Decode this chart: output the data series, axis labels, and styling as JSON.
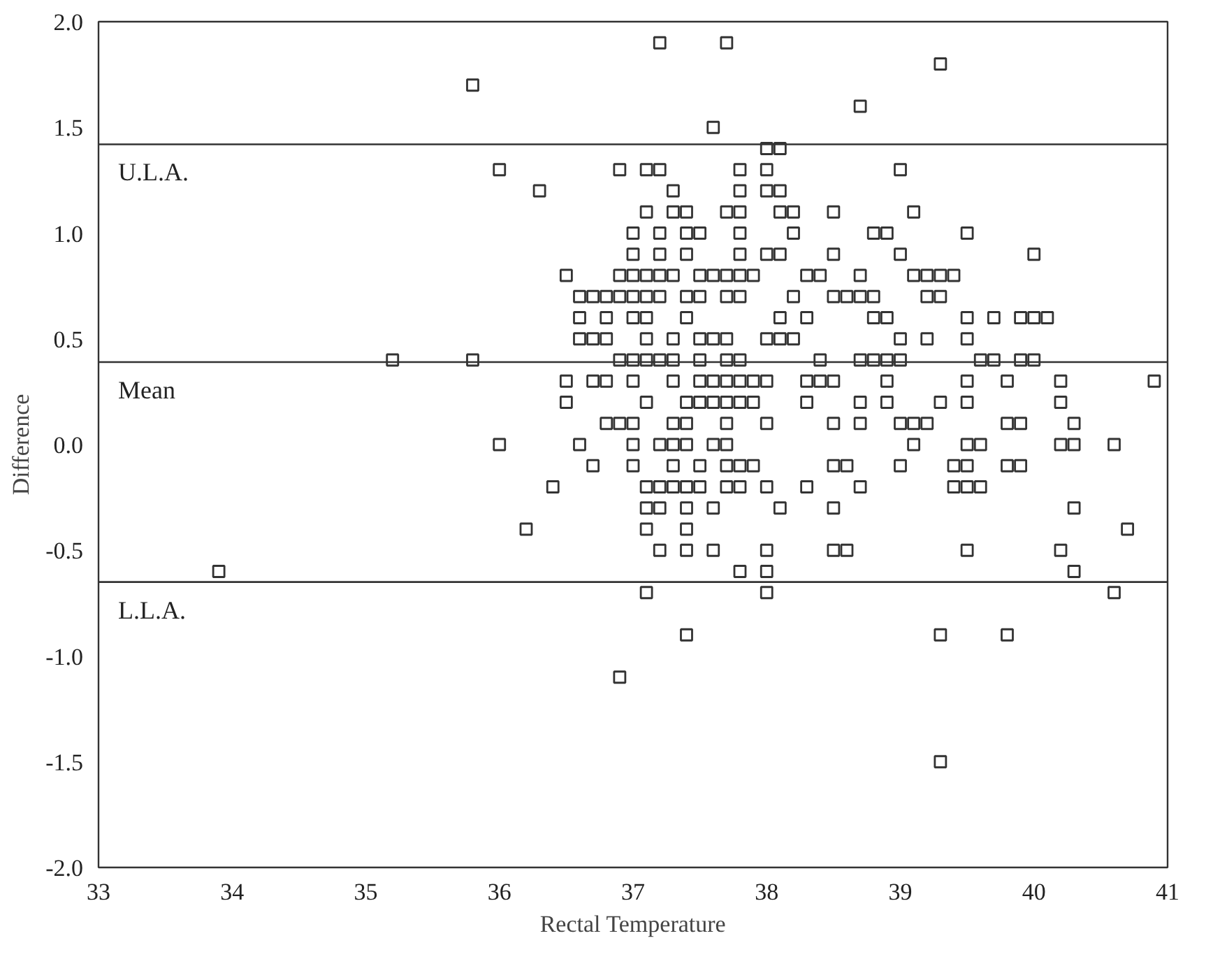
{
  "chart_data": {
    "type": "scatter",
    "xlabel": "Rectal Temperature",
    "ylabel": "Difference",
    "xlim": [
      33,
      41
    ],
    "ylim": [
      -2.0,
      2.0
    ],
    "xticks": [
      33,
      34,
      35,
      36,
      37,
      38,
      39,
      40,
      41
    ],
    "yticks": [
      {
        "value": -2.0,
        "label": "-2.0"
      },
      {
        "value": -1.5,
        "label": "-1.5"
      },
      {
        "value": -1.0,
        "label": "-1.0"
      },
      {
        "value": -0.5,
        "label": "-0.5"
      },
      {
        "value": 0.0,
        "label": "0.0"
      },
      {
        "value": 0.5,
        "label": "0.5"
      },
      {
        "value": 1.0,
        "label": "1.0"
      },
      {
        "value": 1.5,
        "label": "1.5"
      },
      {
        "value": 2.0,
        "label": "2.0"
      }
    ],
    "grid": false,
    "marker": "square",
    "ref_lines": [
      {
        "axis": "y",
        "value": 1.42,
        "label": "U.L.A.",
        "color": "#333333"
      },
      {
        "axis": "y",
        "value": 0.39,
        "label": "Mean",
        "color": "#333333"
      },
      {
        "axis": "y",
        "value": -0.65,
        "label": "L.L.A.",
        "color": "#333333"
      }
    ],
    "series": [
      {
        "color": "#333333",
        "x": [
          37.2,
          37.7,
          39.3,
          35.8,
          38.7,
          37.6,
          38.0,
          38.1,
          36.0,
          36.9,
          37.1,
          37.2,
          37.8,
          38.0,
          39.0,
          36.3,
          37.3,
          37.8,
          38.0,
          38.1,
          37.1,
          37.3,
          37.4,
          37.7,
          37.8,
          38.1,
          38.2,
          38.5,
          39.1,
          37.0,
          37.2,
          37.4,
          37.5,
          37.8,
          38.2,
          38.8,
          38.9,
          39.5,
          37.0,
          37.2,
          37.4,
          37.8,
          38.0,
          38.1,
          38.5,
          39.0,
          40.0,
          36.5,
          36.9,
          37.0,
          37.1,
          37.2,
          37.3,
          37.5,
          37.6,
          37.7,
          37.8,
          37.9,
          38.3,
          38.4,
          38.7,
          39.1,
          39.2,
          39.3,
          39.4,
          36.6,
          36.7,
          36.8,
          36.9,
          37.0,
          37.1,
          37.2,
          37.4,
          37.5,
          37.7,
          37.8,
          38.2,
          38.5,
          38.6,
          38.7,
          38.8,
          39.2,
          39.3,
          36.6,
          36.8,
          37.0,
          37.1,
          37.4,
          38.1,
          38.3,
          38.8,
          38.9,
          39.5,
          39.7,
          39.9,
          40.0,
          40.1,
          36.6,
          36.7,
          36.8,
          37.1,
          37.3,
          37.5,
          37.6,
          37.7,
          38.0,
          38.1,
          38.2,
          39.0,
          39.2,
          39.5,
          35.2,
          35.8,
          36.9,
          37.0,
          37.1,
          37.2,
          37.3,
          37.5,
          37.7,
          37.8,
          38.4,
          38.7,
          38.8,
          38.9,
          39.0,
          39.6,
          39.7,
          39.9,
          40.0,
          36.5,
          36.7,
          36.8,
          37.0,
          37.3,
          37.5,
          37.6,
          37.7,
          37.8,
          37.9,
          38.0,
          38.3,
          38.4,
          38.5,
          38.9,
          39.5,
          39.8,
          40.2,
          40.9,
          36.5,
          37.1,
          37.4,
          37.5,
          37.6,
          37.7,
          37.8,
          37.9,
          38.3,
          38.7,
          38.9,
          39.3,
          39.5,
          40.2,
          36.8,
          36.9,
          37.0,
          37.3,
          37.4,
          37.7,
          38.0,
          38.5,
          38.7,
          39.0,
          39.1,
          39.2,
          39.8,
          39.9,
          40.3,
          36.0,
          36.6,
          37.0,
          37.2,
          37.3,
          37.4,
          37.6,
          37.7,
          39.1,
          39.5,
          39.6,
          40.2,
          40.3,
          40.6,
          36.7,
          37.0,
          37.3,
          37.5,
          37.7,
          37.8,
          37.9,
          38.5,
          38.6,
          39.0,
          39.4,
          39.5,
          39.8,
          39.9,
          36.4,
          37.1,
          37.2,
          37.3,
          37.4,
          37.5,
          37.7,
          37.8,
          38.0,
          38.3,
          38.7,
          39.4,
          39.5,
          39.6,
          37.1,
          37.2,
          37.4,
          37.6,
          38.1,
          38.5,
          40.3,
          36.2,
          37.1,
          37.4,
          40.7,
          37.2,
          37.4,
          37.6,
          38.0,
          38.5,
          38.6,
          39.5,
          40.2,
          33.9,
          37.8,
          38.0,
          40.3,
          37.1,
          38.0,
          40.6,
          37.4,
          39.3,
          39.8,
          36.9,
          39.3
        ],
        "values": [
          1.9,
          1.9,
          1.8,
          1.7,
          1.6,
          1.5,
          1.4,
          1.4,
          1.3,
          1.3,
          1.3,
          1.3,
          1.3,
          1.3,
          1.3,
          1.2,
          1.2,
          1.2,
          1.2,
          1.2,
          1.1,
          1.1,
          1.1,
          1.1,
          1.1,
          1.1,
          1.1,
          1.1,
          1.1,
          1.0,
          1.0,
          1.0,
          1.0,
          1.0,
          1.0,
          1.0,
          1.0,
          1.0,
          0.9,
          0.9,
          0.9,
          0.9,
          0.9,
          0.9,
          0.9,
          0.9,
          0.9,
          0.8,
          0.8,
          0.8,
          0.8,
          0.8,
          0.8,
          0.8,
          0.8,
          0.8,
          0.8,
          0.8,
          0.8,
          0.8,
          0.8,
          0.8,
          0.8,
          0.8,
          0.8,
          0.7,
          0.7,
          0.7,
          0.7,
          0.7,
          0.7,
          0.7,
          0.7,
          0.7,
          0.7,
          0.7,
          0.7,
          0.7,
          0.7,
          0.7,
          0.7,
          0.7,
          0.7,
          0.6,
          0.6,
          0.6,
          0.6,
          0.6,
          0.6,
          0.6,
          0.6,
          0.6,
          0.6,
          0.6,
          0.6,
          0.6,
          0.6,
          0.5,
          0.5,
          0.5,
          0.5,
          0.5,
          0.5,
          0.5,
          0.5,
          0.5,
          0.5,
          0.5,
          0.5,
          0.5,
          0.5,
          0.4,
          0.4,
          0.4,
          0.4,
          0.4,
          0.4,
          0.4,
          0.4,
          0.4,
          0.4,
          0.4,
          0.4,
          0.4,
          0.4,
          0.4,
          0.4,
          0.4,
          0.4,
          0.4,
          0.3,
          0.3,
          0.3,
          0.3,
          0.3,
          0.3,
          0.3,
          0.3,
          0.3,
          0.3,
          0.3,
          0.3,
          0.3,
          0.3,
          0.3,
          0.3,
          0.3,
          0.3,
          0.3,
          0.2,
          0.2,
          0.2,
          0.2,
          0.2,
          0.2,
          0.2,
          0.2,
          0.2,
          0.2,
          0.2,
          0.2,
          0.2,
          0.2,
          0.1,
          0.1,
          0.1,
          0.1,
          0.1,
          0.1,
          0.1,
          0.1,
          0.1,
          0.1,
          0.1,
          0.1,
          0.1,
          0.1,
          0.1,
          0.0,
          0.0,
          0.0,
          0.0,
          0.0,
          0.0,
          0.0,
          0.0,
          0.0,
          0.0,
          0.0,
          0.0,
          0.0,
          0.0,
          -0.1,
          -0.1,
          -0.1,
          -0.1,
          -0.1,
          -0.1,
          -0.1,
          -0.1,
          -0.1,
          -0.1,
          -0.1,
          -0.1,
          -0.1,
          -0.1,
          -0.2,
          -0.2,
          -0.2,
          -0.2,
          -0.2,
          -0.2,
          -0.2,
          -0.2,
          -0.2,
          -0.2,
          -0.2,
          -0.2,
          -0.2,
          -0.2,
          -0.3,
          -0.3,
          -0.3,
          -0.3,
          -0.3,
          -0.3,
          -0.3,
          -0.4,
          -0.4,
          -0.4,
          -0.4,
          -0.5,
          -0.5,
          -0.5,
          -0.5,
          -0.5,
          -0.5,
          -0.5,
          -0.5,
          -0.6,
          -0.6,
          -0.6,
          -0.6,
          -0.7,
          -0.7,
          -0.7,
          -0.9,
          -0.9,
          -0.9,
          -1.1,
          -1.5
        ]
      }
    ]
  }
}
